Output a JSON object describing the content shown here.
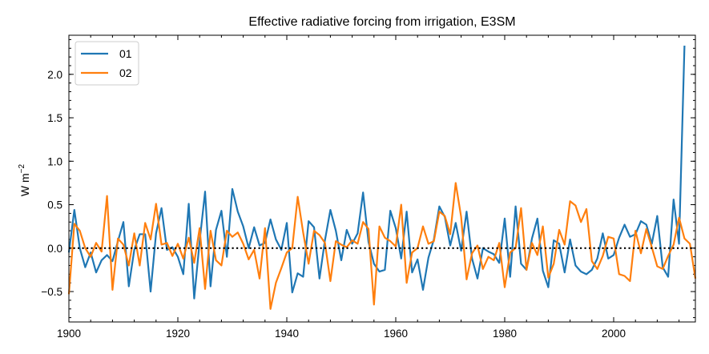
{
  "chart_data": {
    "type": "line",
    "title": "Effective radiative forcing from irrigation, E3SM",
    "xlabel": "",
    "ylabel": "W m",
    "ylabel_superscript": "−2",
    "xlim": [
      1900,
      2015
    ],
    "ylim": [
      -0.85,
      2.45
    ],
    "xticks": [
      1900,
      1920,
      1940,
      1960,
      1980,
      2000
    ],
    "yticks": [
      -0.5,
      0.0,
      0.5,
      1.0,
      1.5,
      2.0
    ],
    "xtick_labels": [
      "1900",
      "1920",
      "1940",
      "1960",
      "1980",
      "2000"
    ],
    "ytick_labels": [
      "−0.5",
      "0.0",
      "0.5",
      "1.0",
      "1.5",
      "2.0"
    ],
    "reference_line": {
      "y": 0.0,
      "style": "dotted",
      "color": "#000000"
    },
    "legend": {
      "placement": "top-left"
    },
    "x_start": 1900,
    "series": [
      {
        "name": "01",
        "color": "#1f77b4",
        "values": [
          -0.05,
          0.44,
          0.0,
          -0.22,
          -0.05,
          -0.28,
          -0.14,
          -0.08,
          -0.15,
          0.08,
          0.3,
          -0.44,
          -0.02,
          0.16,
          0.16,
          -0.5,
          0.17,
          0.46,
          -0.02,
          0.01,
          -0.1,
          -0.3,
          0.51,
          -0.58,
          0.08,
          0.65,
          -0.44,
          0.21,
          0.43,
          -0.1,
          0.68,
          0.42,
          0.25,
          0.0,
          0.24,
          0.03,
          0.06,
          0.33,
          0.1,
          -0.02,
          0.29,
          -0.51,
          -0.29,
          -0.33,
          0.31,
          0.24,
          -0.35,
          0.09,
          0.44,
          0.2,
          -0.14,
          0.21,
          0.05,
          0.17,
          0.64,
          0.07,
          -0.18,
          -0.27,
          -0.25,
          0.43,
          0.23,
          -0.12,
          0.42,
          -0.28,
          -0.13,
          -0.48,
          -0.11,
          0.1,
          0.48,
          0.36,
          0.03,
          0.29,
          -0.03,
          0.42,
          -0.12,
          -0.35,
          0.0,
          -0.04,
          -0.07,
          -0.17,
          0.34,
          -0.33,
          0.48,
          -0.18,
          -0.25,
          0.11,
          0.34,
          -0.26,
          -0.45,
          0.09,
          0.05,
          -0.28,
          0.1,
          -0.2,
          -0.27,
          -0.3,
          -0.25,
          -0.12,
          0.17,
          -0.12,
          -0.08,
          0.12,
          0.27,
          0.13,
          0.16,
          0.31,
          0.27,
          0.05,
          0.37,
          -0.22,
          -0.33,
          0.56,
          0.05,
          2.33
        ]
      },
      {
        "name": "02",
        "color": "#ff7f0e",
        "values": [
          -0.53,
          0.28,
          0.2,
          0.0,
          -0.1,
          0.06,
          -0.04,
          0.6,
          -0.48,
          0.11,
          0.04,
          -0.2,
          0.17,
          -0.2,
          0.29,
          0.1,
          0.51,
          0.04,
          0.06,
          -0.09,
          0.05,
          -0.12,
          0.12,
          -0.17,
          0.23,
          -0.47,
          0.2,
          -0.14,
          -0.2,
          0.2,
          0.13,
          0.18,
          0.05,
          -0.13,
          -0.02,
          -0.35,
          0.23,
          -0.7,
          -0.4,
          -0.23,
          -0.05,
          0.0,
          0.59,
          0.18,
          -0.18,
          0.2,
          0.15,
          0.06,
          -0.38,
          0.08,
          0.04,
          0.01,
          0.09,
          0.05,
          0.3,
          0.22,
          -0.65,
          0.25,
          0.12,
          0.08,
          0.02,
          0.5,
          -0.4,
          -0.05,
          0.0,
          0.25,
          0.05,
          0.08,
          0.42,
          0.37,
          0.16,
          0.75,
          0.36,
          -0.36,
          -0.06,
          0.03,
          -0.24,
          -0.1,
          -0.14,
          0.06,
          -0.45,
          -0.05,
          0.0,
          0.46,
          -0.25,
          0.06,
          -0.08,
          0.25,
          -0.34,
          -0.18,
          0.21,
          0.04,
          0.54,
          0.49,
          0.3,
          0.45,
          -0.15,
          -0.24,
          -0.09,
          0.13,
          0.11,
          -0.3,
          -0.32,
          -0.38,
          0.2,
          -0.06,
          0.22,
          0.01,
          -0.21,
          -0.24,
          -0.09,
          0.04,
          0.35,
          0.11,
          0.05,
          -0.35
        ]
      }
    ]
  }
}
